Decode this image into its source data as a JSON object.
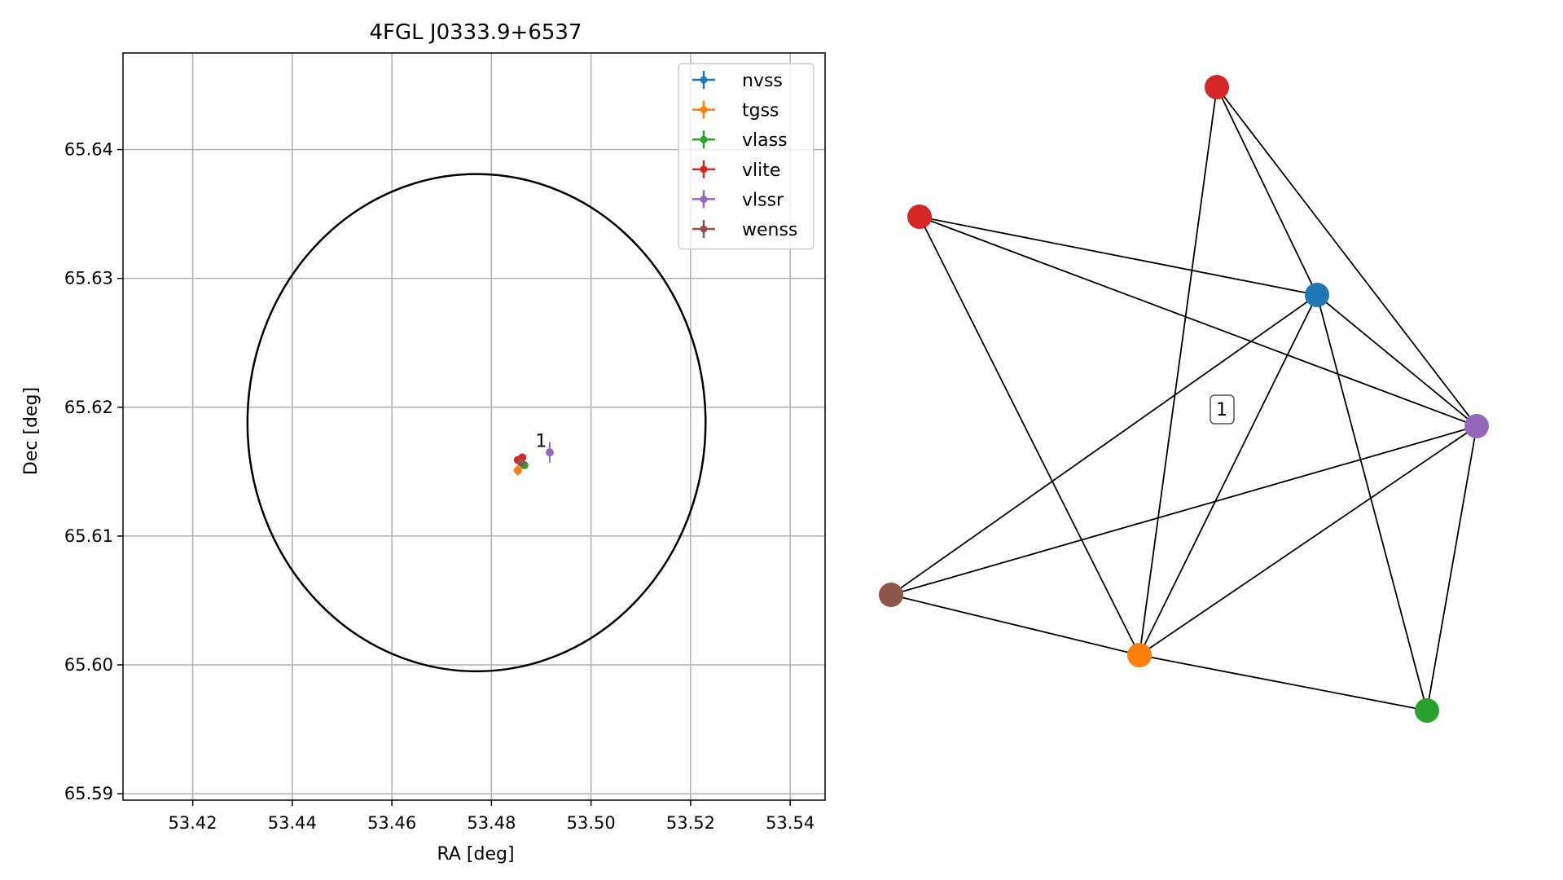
{
  "chart_data": [
    {
      "type": "scatter",
      "title": "4FGL J0333.9+6537",
      "xlabel": "RA [deg]",
      "ylabel": "Dec [deg]",
      "xlim": [
        53.406,
        53.547
      ],
      "ylim": [
        65.5895,
        65.6475
      ],
      "xticks": [
        53.42,
        53.44,
        53.46,
        53.48,
        53.5,
        53.52,
        53.54
      ],
      "xtick_labels": [
        "53.42",
        "53.44",
        "53.46",
        "53.48",
        "53.50",
        "53.52",
        "53.54"
      ],
      "yticks": [
        65.59,
        65.6,
        65.61,
        65.62,
        65.63,
        65.64
      ],
      "ytick_labels": [
        "65.59",
        "65.60",
        "65.61",
        "65.62",
        "65.63",
        "65.64"
      ],
      "grid": true,
      "legend_position": "top-right",
      "ellipse": {
        "center": [
          53.477,
          65.6188
        ],
        "ra_radius": 0.046,
        "dec_radius": 0.0193,
        "color": "#000000"
      },
      "annotations": [
        {
          "text": "1",
          "x": 53.4885,
          "y": 65.6168
        }
      ],
      "series": [
        {
          "name": "nvss",
          "color": "#1f77b4",
          "x": 53.486,
          "y": 65.6157,
          "xerr": 0.0004,
          "yerr": 0.0003
        },
        {
          "name": "tgss",
          "color": "#ff7f0e",
          "x": 53.4853,
          "y": 65.6151,
          "xerr": 0.0003,
          "yerr": 0.0004
        },
        {
          "name": "vlass",
          "color": "#2ca02c",
          "x": 53.4866,
          "y": 65.6155,
          "xerr": 0.0002,
          "yerr": 0.0002
        },
        {
          "name": "vlite",
          "color": "#d62728",
          "x": 53.4853,
          "y": 65.6159,
          "xerr": 0.0003,
          "yerr": 0.0002
        },
        {
          "name": "vlite",
          "color": "#d62728",
          "x": 53.4862,
          "y": 65.6161,
          "xerr": 0.0003,
          "yerr": 0.0002
        },
        {
          "name": "vlssr",
          "color": "#9467bd",
          "x": 53.4917,
          "y": 65.6165,
          "xerr": 0.0003,
          "yerr": 0.0008
        },
        {
          "name": "wenss",
          "color": "#8c564b",
          "x": 53.486,
          "y": 65.6157,
          "xerr": 0.0003,
          "yerr": 0.0003
        }
      ],
      "legend": [
        {
          "name": "nvss",
          "color": "#1f77b4"
        },
        {
          "name": "tgss",
          "color": "#ff7f0e"
        },
        {
          "name": "vlass",
          "color": "#2ca02c"
        },
        {
          "name": "vlite",
          "color": "#d62728"
        },
        {
          "name": "vlssr",
          "color": "#9467bd"
        },
        {
          "name": "wenss",
          "color": "#8c564b"
        }
      ]
    },
    {
      "type": "network",
      "group_label": "1",
      "nodes": [
        {
          "id": "nvss",
          "color": "#1f77b4"
        },
        {
          "id": "tgss",
          "color": "#ff7f0e"
        },
        {
          "id": "vlass",
          "color": "#2ca02c"
        },
        {
          "id": "vlite_a",
          "color": "#d62728"
        },
        {
          "id": "vlite_b",
          "color": "#d62728"
        },
        {
          "id": "vlssr",
          "color": "#9467bd"
        },
        {
          "id": "wenss",
          "color": "#8c564b"
        }
      ],
      "edges": [
        [
          "vlite_a",
          "nvss"
        ],
        [
          "vlite_a",
          "vlssr"
        ],
        [
          "vlite_a",
          "tgss"
        ],
        [
          "nvss",
          "vlssr"
        ],
        [
          "nvss",
          "wenss"
        ],
        [
          "nvss",
          "tgss"
        ],
        [
          "nvss",
          "vlass"
        ],
        [
          "vlite_b",
          "nvss"
        ],
        [
          "vlite_b",
          "vlssr"
        ],
        [
          "vlite_b",
          "tgss"
        ],
        [
          "vlssr",
          "wenss"
        ],
        [
          "vlssr",
          "tgss"
        ],
        [
          "vlssr",
          "vlass"
        ],
        [
          "wenss",
          "tgss"
        ],
        [
          "tgss",
          "vlass"
        ]
      ]
    }
  ]
}
